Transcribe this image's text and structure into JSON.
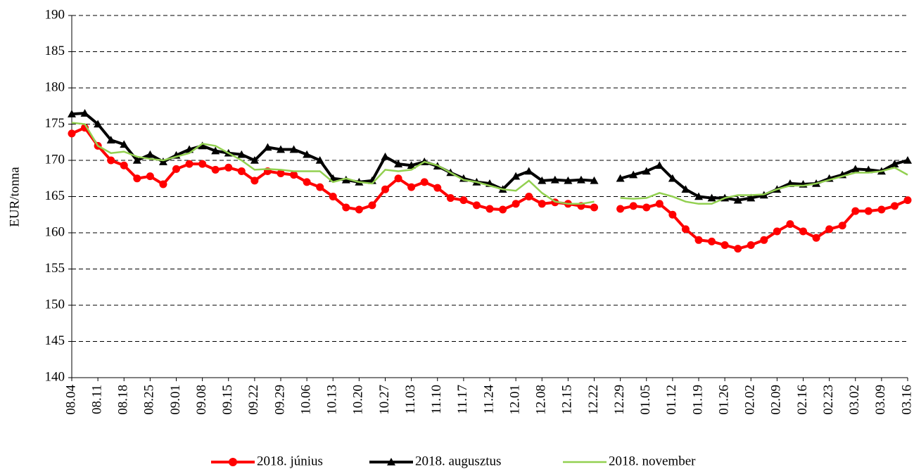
{
  "chart_data": {
    "type": "line",
    "y_label": "EUR/tonna",
    "categories": [
      "08.04",
      null,
      "08.11",
      null,
      "08.18",
      null,
      "08.25",
      null,
      "09.01",
      null,
      "09.08",
      null,
      "09.15",
      null,
      "09.22",
      null,
      "09.29",
      null,
      "10.06",
      null,
      "10.13",
      null,
      "10.20",
      null,
      "10.27",
      null,
      "11.03",
      null,
      "11.10",
      null,
      "11.17",
      null,
      "11.24",
      null,
      "12.01",
      null,
      "12.08",
      null,
      "12.15",
      null,
      "12.22",
      null,
      "12.29",
      null,
      "01.05",
      null,
      "01.12",
      null,
      "01.19",
      null,
      "01.26",
      null,
      "02.02",
      null,
      "02.09",
      null,
      "02.16",
      null,
      "02.23",
      null,
      "03.02",
      null,
      "03.09",
      null,
      "03.16"
    ],
    "series": [
      {
        "name": "2018. június",
        "color": "#ff0000",
        "marker": "circle",
        "values": [
          173.7,
          174.5,
          172,
          170,
          169.3,
          167.5,
          167.8,
          166.7,
          168.8,
          169.5,
          169.5,
          168.7,
          169,
          168.5,
          167.2,
          168.5,
          168.2,
          168,
          167,
          166.3,
          165,
          163.5,
          163.2,
          163.8,
          166,
          167.5,
          166.3,
          167,
          166.2,
          164.8,
          164.5,
          163.8,
          163.3,
          163.2,
          164,
          165,
          164,
          164.2,
          164,
          163.7,
          163.5,
          null,
          163.3,
          163.7,
          163.5,
          164,
          162.5,
          160.5,
          159,
          158.8,
          158.3,
          157.8,
          158.3,
          159,
          160.2,
          161.2,
          160.2,
          159.3,
          160.5,
          161,
          163,
          163,
          163.2,
          163.7,
          164.5
        ]
      },
      {
        "name": "2018. augusztus",
        "color": "#000000",
        "marker": "triangle",
        "values": [
          176.4,
          176.5,
          175,
          172.8,
          172.2,
          170,
          170.8,
          169.8,
          170.7,
          171.5,
          172,
          171.3,
          171,
          170.8,
          170,
          171.8,
          171.5,
          171.5,
          170.8,
          170,
          167.5,
          167.3,
          167,
          167.2,
          170.5,
          169.5,
          169.3,
          169.8,
          169.2,
          168.3,
          167.5,
          167,
          166.8,
          166,
          167.8,
          168.5,
          167.2,
          167.3,
          167.2,
          167.3,
          167.2,
          null,
          167.5,
          168,
          168.5,
          169.3,
          167.5,
          166,
          165,
          164.8,
          164.8,
          164.5,
          164.8,
          165.2,
          166,
          166.8,
          166.7,
          166.8,
          167.5,
          168,
          168.8,
          168.7,
          168.5,
          169.5,
          170
        ]
      },
      {
        "name": "2018. november",
        "color": "#92d050",
        "marker": "none",
        "values": [
          175.2,
          175,
          172,
          171,
          171.2,
          170.5,
          170.2,
          170,
          170.5,
          171,
          172.3,
          172,
          171,
          170,
          168.7,
          168.8,
          168.7,
          168.5,
          168.5,
          168.5,
          167,
          167.5,
          167,
          166.8,
          168.7,
          168.5,
          168.7,
          169.8,
          169.3,
          168.3,
          167.3,
          167,
          166.5,
          166,
          165.8,
          167.2,
          165.5,
          164.3,
          164,
          164,
          164.3,
          null,
          164.8,
          164.7,
          164.8,
          165.5,
          165,
          164.3,
          164,
          164,
          164.8,
          165.2,
          165.2,
          165.3,
          166,
          166.5,
          166.5,
          166.8,
          167.3,
          167.8,
          168.3,
          168.3,
          168.5,
          169,
          168
        ]
      }
    ],
    "ylim": [
      140,
      190
    ],
    "yticks": [
      140,
      145,
      150,
      155,
      160,
      165,
      170,
      175,
      180,
      185,
      190
    ],
    "grid": true,
    "legend": "bottom"
  }
}
